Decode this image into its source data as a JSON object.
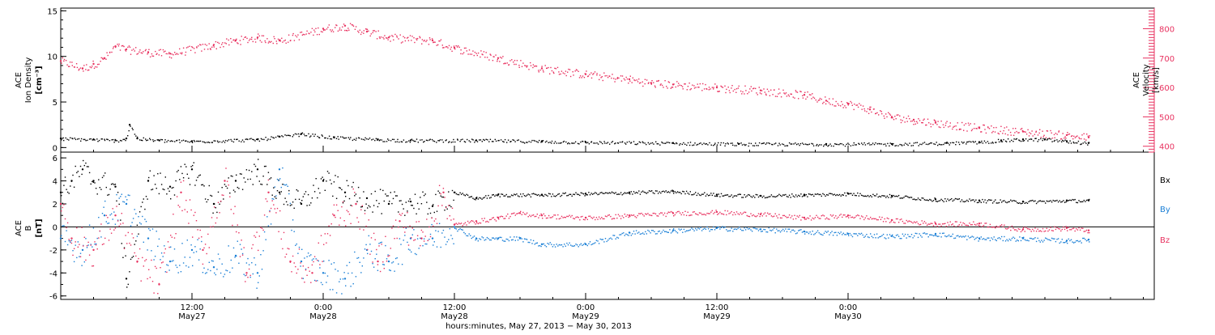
{
  "colors": {
    "black": "#000000",
    "density": "#000000",
    "velocity": "#e8315f",
    "bx": "#000000",
    "by": "#1a7fd6",
    "bz": "#e8315f"
  },
  "chart_data": [
    {
      "type": "scatter",
      "panel": "top",
      "y_left_label_lines": [
        "ACE",
        "Ion Density",
        "[cm⁻³]"
      ],
      "y_right_label_lines": [
        "ACE",
        "Velocity",
        "[km/s]"
      ],
      "y_left_ticks": [
        "0",
        "5",
        "10",
        "15"
      ],
      "y_right_ticks": [
        "400",
        "500",
        "600",
        "700",
        "800"
      ],
      "y_left_lim": [
        -0.5,
        15.3
      ],
      "y_right_lim": [
        380,
        870
      ],
      "x_lim_hours": [
        0,
        100
      ],
      "grid": false,
      "series": [
        {
          "name": "",
          "axis": "left",
          "color": "black",
          "x_hours": [
            0,
            3,
            5,
            6,
            6.3,
            7,
            9,
            12,
            18,
            20,
            22,
            25,
            29,
            32,
            38,
            44,
            48,
            56,
            62,
            70,
            76,
            81,
            84,
            86,
            88,
            90,
            92,
            94
          ],
          "values": [
            1.0,
            0.9,
            0.8,
            1.0,
            2.5,
            1.0,
            0.8,
            0.7,
            0.9,
            1.2,
            1.5,
            1.1,
            0.9,
            0.8,
            0.8,
            0.7,
            0.6,
            0.5,
            0.4,
            0.4,
            0.4,
            0.5,
            0.6,
            0.8,
            0.9,
            0.9,
            0.7,
            0.5
          ]
        },
        {
          "name": "",
          "axis": "right",
          "color": "velocity",
          "x_hours": [
            0,
            2,
            3,
            4,
            5,
            6,
            8,
            10,
            14,
            16,
            18,
            20,
            24,
            26,
            28,
            30,
            34,
            36,
            40,
            44,
            48,
            52,
            54,
            56,
            60,
            64,
            68,
            70,
            72,
            74,
            76,
            78,
            80,
            84,
            88,
            92,
            94
          ],
          "values": [
            690,
            665,
            680,
            700,
            740,
            730,
            720,
            715,
            745,
            760,
            770,
            760,
            800,
            810,
            790,
            770,
            760,
            735,
            700,
            665,
            645,
            628,
            615,
            610,
            600,
            590,
            575,
            555,
            545,
            525,
            500,
            490,
            480,
            462,
            450,
            438,
            430
          ]
        }
      ]
    },
    {
      "type": "scatter",
      "panel": "bottom",
      "y_label_lines": [
        "ACE",
        "B",
        "[nT]"
      ],
      "y_ticks": [
        "-6",
        "-4",
        "-2",
        "0",
        "2",
        "4",
        "6"
      ],
      "y_lim": [
        -6.3,
        6.5
      ],
      "zero_line": true,
      "x_lim_hours": [
        0,
        100
      ],
      "grid": false,
      "series": [
        {
          "name": "Bx",
          "color": "bx",
          "x_hours": [
            0,
            1,
            2,
            3,
            5,
            6,
            8,
            10,
            12,
            14,
            16,
            18,
            20,
            22,
            24,
            26,
            28,
            30,
            32,
            34,
            36,
            38,
            40,
            44,
            48,
            52,
            56,
            60,
            64,
            68,
            72,
            76,
            80,
            84,
            88,
            92,
            94
          ],
          "values": [
            3,
            4,
            5,
            4,
            3.5,
            -4.5,
            4,
            3.5,
            5,
            2,
            4,
            5,
            3,
            2,
            4,
            3,
            2.5,
            2,
            2.2,
            1.8,
            3,
            2.5,
            2.8,
            2.8,
            2.9,
            3.0,
            3.1,
            2.8,
            2.7,
            2.8,
            2.9,
            2.7,
            2.4,
            2.3,
            2.2,
            2.3,
            2.3
          ]
        },
        {
          "name": "By",
          "color": "by",
          "x_hours": [
            0,
            2,
            4,
            6,
            8,
            10,
            12,
            14,
            16,
            18,
            20,
            22,
            24,
            26,
            28,
            30,
            32,
            34,
            36,
            38,
            40,
            42,
            44,
            48,
            52,
            56,
            60,
            64,
            68,
            72,
            76,
            80,
            84,
            88,
            92,
            94
          ],
          "values": [
            -1,
            -2,
            1,
            2,
            -1,
            -3,
            -2,
            -3.5,
            -2.5,
            -4,
            5,
            -3,
            -4,
            -4.5,
            -2,
            -3,
            -1,
            -1,
            0,
            -1,
            -1,
            -1,
            -1.5,
            -1.5,
            -0.5,
            -0.3,
            -0.1,
            -0.2,
            -0.4,
            -0.6,
            -0.8,
            -0.6,
            -1.0,
            -1.0,
            -1.2,
            -1.1
          ]
        },
        {
          "name": "Bz",
          "color": "bz",
          "x_hours": [
            0,
            1,
            3,
            5,
            7,
            9,
            11,
            13,
            15,
            17,
            19,
            21,
            23,
            25,
            27,
            29,
            31,
            33,
            35,
            36,
            38,
            40,
            42,
            44,
            48,
            52,
            56,
            60,
            64,
            68,
            72,
            76,
            80,
            84,
            88,
            92,
            94
          ],
          "values": [
            2,
            -1,
            -2,
            1,
            -3,
            -5,
            3,
            -2,
            4,
            -4,
            3,
            -3,
            -4,
            1,
            2,
            -3,
            0.5,
            -1,
            3,
            0.2,
            0.5,
            0.8,
            1.2,
            1.0,
            0.8,
            1.0,
            1.2,
            1.3,
            1.1,
            0.8,
            1.0,
            0.6,
            0.3,
            0.3,
            -0.2,
            -0.1,
            -0.3
          ]
        }
      ],
      "legend": [
        "Bx",
        "By",
        "Bz"
      ],
      "legend_placement": "right"
    }
  ],
  "x_axis": {
    "ticks": [
      {
        "time": "12:00",
        "date": "May27",
        "hour": 12
      },
      {
        "time": "0:00",
        "date": "May28",
        "hour": 24
      },
      {
        "time": "12:00",
        "date": "May28",
        "hour": 36
      },
      {
        "time": "0:00",
        "date": "May29",
        "hour": 48
      },
      {
        "time": "12:00",
        "date": "May29",
        "hour": 60
      },
      {
        "time": "0:00",
        "date": "May30",
        "hour": 72
      }
    ],
    "title": "hours:minutes, May 27, 2013 − May 30, 2013"
  }
}
